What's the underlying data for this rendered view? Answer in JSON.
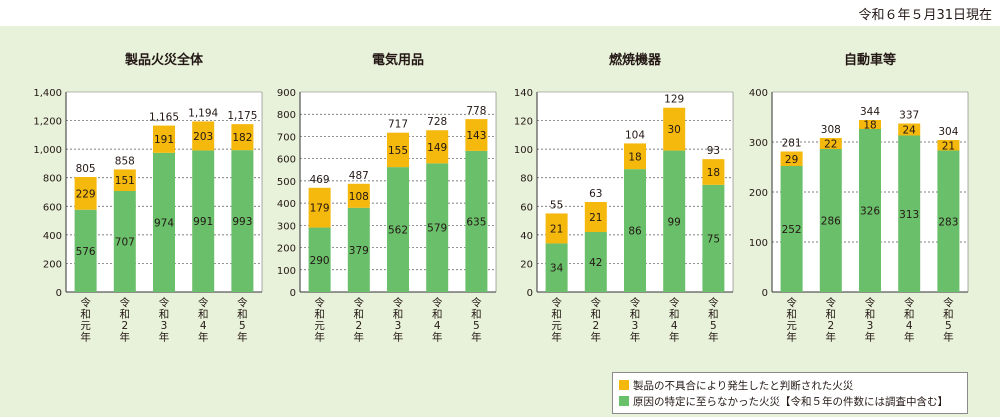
{
  "date_note": "令和６年５月31日現在",
  "colors": {
    "green": "#6abf6a",
    "orange": "#f5b80c",
    "grid": "#555555"
  },
  "legend": [
    {
      "label": "製品の不具合により発生したと判断された火災",
      "color": "#f5b80c"
    },
    {
      "label": "原因の特定に至らなかった火災【令和５年の件数には調査中含む】",
      "color": "#6abf6a"
    }
  ],
  "chart_data": [
    {
      "type": "bar",
      "title": "製品火災全体",
      "categories": [
        "令和元年",
        "令和2年",
        "令和3年",
        "令和4年",
        "令和5年"
      ],
      "ylim": [
        0,
        1400
      ],
      "yticks": [
        "0",
        "200",
        "400",
        "600",
        "800",
        "1,000",
        "1,200",
        "1,400"
      ],
      "series": [
        {
          "name": "原因の特定に至らなかった火災",
          "values": [
            576,
            707,
            974,
            991,
            993
          ]
        },
        {
          "name": "製品の不具合により発生したと判断された火災",
          "values": [
            229,
            151,
            191,
            203,
            182
          ]
        }
      ],
      "totals": [
        "805",
        "858",
        "1,165",
        "1,194",
        "1,175"
      ]
    },
    {
      "type": "bar",
      "title": "電気用品",
      "categories": [
        "令和元年",
        "令和2年",
        "令和3年",
        "令和4年",
        "令和5年"
      ],
      "ylim": [
        0,
        900
      ],
      "yticks": [
        "0",
        "100",
        "200",
        "300",
        "400",
        "500",
        "600",
        "700",
        "800",
        "900"
      ],
      "series": [
        {
          "name": "原因の特定に至らなかった火災",
          "values": [
            290,
            379,
            562,
            579,
            635
          ]
        },
        {
          "name": "製品の不具合により発生したと判断された火災",
          "values": [
            179,
            108,
            155,
            149,
            143
          ]
        }
      ],
      "totals": [
        "469",
        "487",
        "717",
        "728",
        "778"
      ]
    },
    {
      "type": "bar",
      "title": "燃焼機器",
      "categories": [
        "令和元年",
        "令和2年",
        "令和3年",
        "令和4年",
        "令和5年"
      ],
      "ylim": [
        0,
        140
      ],
      "yticks": [
        "0",
        "20",
        "40",
        "60",
        "80",
        "100",
        "120",
        "140"
      ],
      "series": [
        {
          "name": "原因の特定に至らなかった火災",
          "values": [
            34,
            42,
            86,
            99,
            75
          ]
        },
        {
          "name": "製品の不具合により発生したと判断された火災",
          "values": [
            21,
            21,
            18,
            30,
            18
          ]
        }
      ],
      "totals": [
        "55",
        "63",
        "104",
        "129",
        "93"
      ]
    },
    {
      "type": "bar",
      "title": "自動車等",
      "categories": [
        "令和元年",
        "令和2年",
        "令和3年",
        "令和4年",
        "令和5年"
      ],
      "ylim": [
        0,
        400
      ],
      "yticks": [
        "0",
        "100",
        "200",
        "300",
        "400"
      ],
      "series": [
        {
          "name": "原因の特定に至らなかった火災",
          "values": [
            252,
            286,
            326,
            313,
            283
          ]
        },
        {
          "name": "製品の不具合により発生したと判断された火災",
          "values": [
            29,
            22,
            18,
            24,
            21
          ]
        }
      ],
      "totals": [
        "281",
        "308",
        "344",
        "337",
        "304"
      ]
    }
  ]
}
